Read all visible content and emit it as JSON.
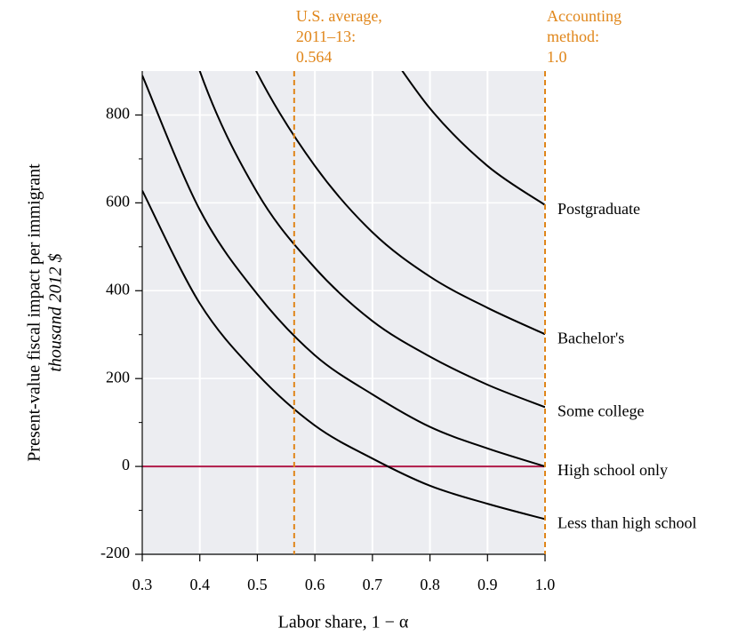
{
  "chart_data": {
    "type": "line",
    "x_label": "Labor share, 1 − α",
    "y_label": [
      "Present-value fiscal impact per immigrant",
      "thousand 2012 $"
    ],
    "x": [
      0.3,
      0.4,
      0.5,
      0.6,
      0.7,
      0.8,
      0.9,
      1.0
    ],
    "series": [
      {
        "name": "Postgraduate",
        "color": "#000000",
        "values": [
          null,
          null,
          null,
          null,
          1000,
          815,
          684,
          595
        ]
      },
      {
        "name": "Bachelor's",
        "color": "#000000",
        "values": [
          null,
          1190,
          895,
          684,
          533,
          432,
          361,
          301
        ]
      },
      {
        "name": "Some college",
        "color": "#000000",
        "values": [
          1350,
          900,
          623,
          452,
          331,
          250,
          186,
          135
        ]
      },
      {
        "name": "High school only",
        "color": "#000000",
        "values": [
          890,
          584,
          392,
          253,
          164,
          90,
          41,
          0
        ]
      },
      {
        "name": "Less than high school",
        "color": "#000000",
        "values": [
          628,
          371,
          210,
          93,
          18,
          -44,
          -85,
          -120
        ]
      }
    ],
    "xlim": [
      0.3,
      1.0
    ],
    "ylim": [
      -200,
      900
    ],
    "xticks": [
      0.3,
      0.4,
      0.5,
      0.6,
      0.7,
      0.8,
      0.9,
      {
        "value": 1.0,
        "label": "1.0"
      }
    ],
    "yticks": [
      -200,
      0,
      200,
      400,
      600,
      800
    ],
    "yminor_ticks": [
      -100,
      100,
      300,
      500,
      700
    ],
    "grid": true,
    "background": "#ecedf1",
    "zero_line": {
      "value": 0,
      "color": "#b01a48"
    },
    "vlines": [
      {
        "x": 0.564,
        "color": "#e0861a",
        "label": [
          "U.S. average,",
          "2011–13:",
          "0.564"
        ]
      },
      {
        "x": 1.0,
        "color": "#e0861a",
        "label": [
          "Accounting",
          "method:",
          "1.0"
        ]
      }
    ]
  }
}
